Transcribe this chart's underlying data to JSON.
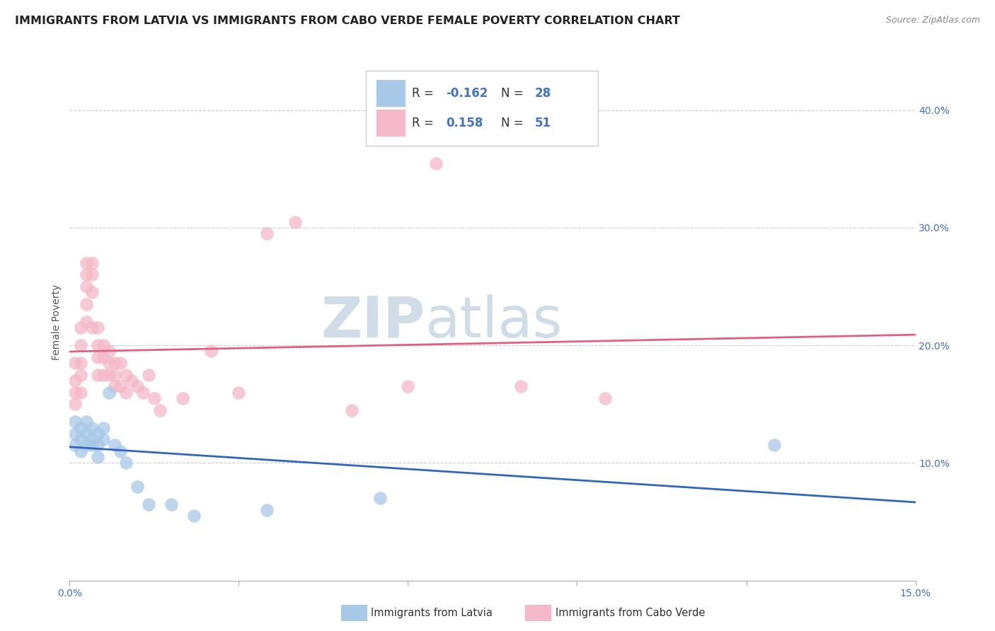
{
  "title": "IMMIGRANTS FROM LATVIA VS IMMIGRANTS FROM CABO VERDE FEMALE POVERTY CORRELATION CHART",
  "source": "Source: ZipAtlas.com",
  "ylabel": "Female Poverty",
  "xlim": [
    0.0,
    0.15
  ],
  "ylim": [
    0.0,
    0.44
  ],
  "xticks": [
    0.0,
    0.03,
    0.06,
    0.09,
    0.12,
    0.15
  ],
  "xtick_labels": [
    "0.0%",
    "",
    "",
    "",
    "",
    "15.0%"
  ],
  "ytick_vals_right": [
    0.1,
    0.2,
    0.3,
    0.4
  ],
  "ytick_labels_right": [
    "10.0%",
    "20.0%",
    "30.0%",
    "40.0%"
  ],
  "grid_color": "#cccccc",
  "background_color": "#ffffff",
  "blue_color": "#a8c8e8",
  "blue_edge": "#a8c8e8",
  "blue_line": "#3366bb",
  "pink_color": "#f4b8c8",
  "pink_edge": "#f4b8c8",
  "pink_line": "#e06080",
  "latvia_label": "Immigrants from Latvia",
  "cabo_label": "Immigrants from Cabo Verde",
  "latvia_R": "-0.162",
  "latvia_N": "28",
  "cabo_R": "0.158",
  "cabo_N": "51",
  "r_text_color": "#4472c4",
  "n_text_color": "#4472c4",
  "label_color": "#4472c4",
  "watermark": "ZIPatlas",
  "watermark_color": "#d0dce8",
  "title_fontsize": 11.5,
  "tick_fontsize": 10,
  "legend_fontsize": 12,
  "latvia_x": [
    0.001,
    0.001,
    0.001,
    0.002,
    0.002,
    0.002,
    0.003,
    0.003,
    0.003,
    0.004,
    0.004,
    0.004,
    0.005,
    0.005,
    0.005,
    0.006,
    0.006,
    0.007,
    0.008,
    0.009,
    0.01,
    0.012,
    0.014,
    0.018,
    0.022,
    0.035,
    0.055,
    0.125
  ],
  "latvia_y": [
    0.125,
    0.135,
    0.115,
    0.13,
    0.12,
    0.11,
    0.135,
    0.125,
    0.115,
    0.13,
    0.12,
    0.115,
    0.125,
    0.115,
    0.105,
    0.13,
    0.12,
    0.16,
    0.115,
    0.11,
    0.1,
    0.08,
    0.065,
    0.065,
    0.055,
    0.06,
    0.07,
    0.115
  ],
  "cabo_x": [
    0.001,
    0.001,
    0.001,
    0.001,
    0.002,
    0.002,
    0.002,
    0.002,
    0.002,
    0.003,
    0.003,
    0.003,
    0.003,
    0.003,
    0.004,
    0.004,
    0.004,
    0.004,
    0.005,
    0.005,
    0.005,
    0.005,
    0.006,
    0.006,
    0.006,
    0.007,
    0.007,
    0.007,
    0.008,
    0.008,
    0.008,
    0.009,
    0.009,
    0.01,
    0.01,
    0.011,
    0.012,
    0.013,
    0.014,
    0.015,
    0.016,
    0.02,
    0.025,
    0.03,
    0.035,
    0.04,
    0.05,
    0.06,
    0.065,
    0.08,
    0.095
  ],
  "cabo_y": [
    0.185,
    0.17,
    0.16,
    0.15,
    0.215,
    0.2,
    0.185,
    0.175,
    0.16,
    0.27,
    0.26,
    0.25,
    0.235,
    0.22,
    0.27,
    0.26,
    0.245,
    0.215,
    0.215,
    0.2,
    0.19,
    0.175,
    0.2,
    0.19,
    0.175,
    0.195,
    0.185,
    0.175,
    0.185,
    0.175,
    0.165,
    0.185,
    0.165,
    0.175,
    0.16,
    0.17,
    0.165,
    0.16,
    0.175,
    0.155,
    0.145,
    0.155,
    0.195,
    0.16,
    0.295,
    0.305,
    0.145,
    0.165,
    0.355,
    0.165,
    0.155
  ]
}
